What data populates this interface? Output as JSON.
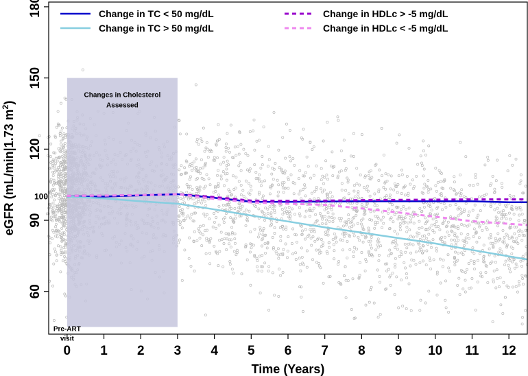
{
  "chart_data": {
    "type": "line",
    "xlabel": "Time (Years)",
    "ylabel_main": "eGFR (mL/min|1.73 m",
    "ylabel_sup": "2",
    "ylabel_close": ")",
    "xlim": [
      -0.5,
      12.5
    ],
    "ylim": [
      42,
      182
    ],
    "x_ticks": [
      0,
      1,
      2,
      3,
      4,
      5,
      6,
      7,
      8,
      9,
      10,
      11,
      12
    ],
    "y_ticks": [
      60,
      90,
      120,
      150,
      180
    ],
    "y_ref_label": "100",
    "y_ref_value": 100,
    "shaded_region": {
      "x_start": 0,
      "x_end": 3,
      "y_start": 45,
      "y_end": 150,
      "label_line1": "Changes in Cholesterol",
      "label_line2": "Assessed",
      "color": "#c5c5dd"
    },
    "annotation": {
      "line1": "Pre-ART",
      "line2": "visit",
      "x": 0,
      "y": 45
    },
    "legend": {
      "position": "top"
    },
    "series": [
      {
        "name": "Change in TC < 50 mg/dL",
        "color": "#0000cc",
        "dash": false,
        "x": [
          0,
          1,
          2,
          3,
          4,
          5,
          6,
          7,
          8,
          9,
          10,
          11,
          12,
          12.5
        ],
        "y": [
          100,
          100,
          100.5,
          101,
          99.5,
          97.8,
          97.8,
          97.9,
          98,
          98,
          98,
          98,
          97.6,
          97.6
        ]
      },
      {
        "name": "Change in TC > 50 mg/dL",
        "color": "#87cee0",
        "dash": false,
        "x": [
          0,
          1,
          2,
          3,
          4,
          5,
          6,
          7,
          8,
          9,
          10,
          11,
          12,
          12.5
        ],
        "y": [
          100,
          99.2,
          98,
          97,
          94.6,
          92,
          89.5,
          87,
          84.8,
          82.5,
          80.2,
          77.5,
          74.8,
          73.5
        ]
      },
      {
        "name": "Change in HDLc > -5 mg/dL",
        "color": "#9900cc",
        "dash": true,
        "x": [
          0,
          1,
          2,
          3,
          4,
          5,
          6,
          7,
          8,
          9,
          10,
          11,
          12,
          12.5
        ],
        "y": [
          100.3,
          100.4,
          100.6,
          101,
          99.8,
          98.3,
          98.2,
          98.3,
          98.5,
          98.6,
          98.7,
          98.8,
          98.8,
          98.8
        ]
      },
      {
        "name": "Change in HDLc < -5 mg/dL",
        "color": "#ee88ee",
        "dash": true,
        "x": [
          0,
          1,
          2,
          3,
          4,
          5,
          6,
          7,
          8,
          9,
          10,
          11,
          12,
          12.5
        ],
        "y": [
          100.3,
          100.4,
          100.6,
          101,
          99,
          97.5,
          97,
          96.5,
          95,
          93.3,
          91.5,
          89.6,
          88.5,
          88
        ]
      }
    ],
    "scatter": {
      "n": 3000,
      "color": "#b9b9b9"
    }
  }
}
